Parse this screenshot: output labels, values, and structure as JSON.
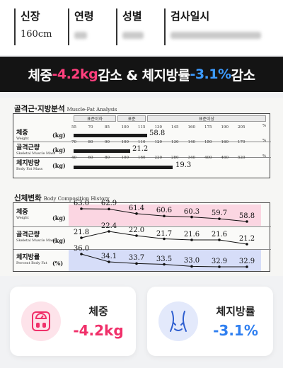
{
  "info": {
    "height": {
      "label": "신장",
      "value": "160cm"
    },
    "age": {
      "label": "연령"
    },
    "gender": {
      "label": "성별"
    },
    "exam_date": {
      "label": "검사일시"
    }
  },
  "banner": {
    "part1": "체중 ",
    "weight_change": "-4.2kg",
    "part2": " 감소 & 체지방률 ",
    "fat_change": "-3.1%",
    "part3": " 감소"
  },
  "muscle_fat": {
    "title": "골격근·지방분석",
    "title_en": "Muscle-Fat Analysis",
    "ranges": [
      "표준이하",
      "표준",
      "표준이상"
    ],
    "rows": [
      {
        "label": "체중",
        "label_en": "Weight",
        "unit": "(kg)",
        "ticks": [
          "55",
          "70",
          "85",
          "100",
          "115",
          "130",
          "145",
          "160",
          "175",
          "190",
          "205"
        ],
        "tick_unit": "%",
        "value": "58.8"
      },
      {
        "label": "골격근량",
        "label_en": "Skeletal Muscle Mass",
        "unit": "(kg)",
        "ticks": [
          "70",
          "80",
          "90",
          "100",
          "110",
          "120",
          "130",
          "140",
          "150",
          "160",
          "170"
        ],
        "tick_unit": "%",
        "value": "21.2"
      },
      {
        "label": "체지방량",
        "label_en": "Body Fat Mass",
        "unit": "(kg)",
        "ticks": [
          "40",
          "60",
          "80",
          "100",
          "160",
          "220",
          "280",
          "340",
          "400",
          "460",
          "520"
        ],
        "tick_unit": "%",
        "value": "19.3"
      }
    ]
  },
  "history": {
    "title": "신체변화",
    "title_en": "Body Composition History",
    "rows": [
      {
        "label": "체중",
        "label_en": "Weight",
        "unit": "(kg)",
        "values": [
          "63.0",
          "62.9",
          "61.4",
          "60.6",
          "60.3",
          "59.7",
          "58.8"
        ]
      },
      {
        "label": "골격근량",
        "label_en": "Skeletal Muscle Mass",
        "unit": "(kg)",
        "values": [
          "21.8",
          "22.4",
          "22.0",
          "21.7",
          "21.6",
          "21.6",
          "21.2"
        ]
      },
      {
        "label": "체지방률",
        "label_en": "Percent Body Fat",
        "unit": "(%)",
        "values": [
          "36.0",
          "34.1",
          "33.7",
          "33.5",
          "33.0",
          "32.9",
          "32.9"
        ]
      }
    ]
  },
  "cards": [
    {
      "title": "체중",
      "value": "-4.2kg",
      "color": "#f0306a",
      "icon": "scale-icon"
    },
    {
      "title": "체지방률",
      "value": "-3.1%",
      "color": "#2f7ff0",
      "icon": "waist-icon"
    }
  ]
}
